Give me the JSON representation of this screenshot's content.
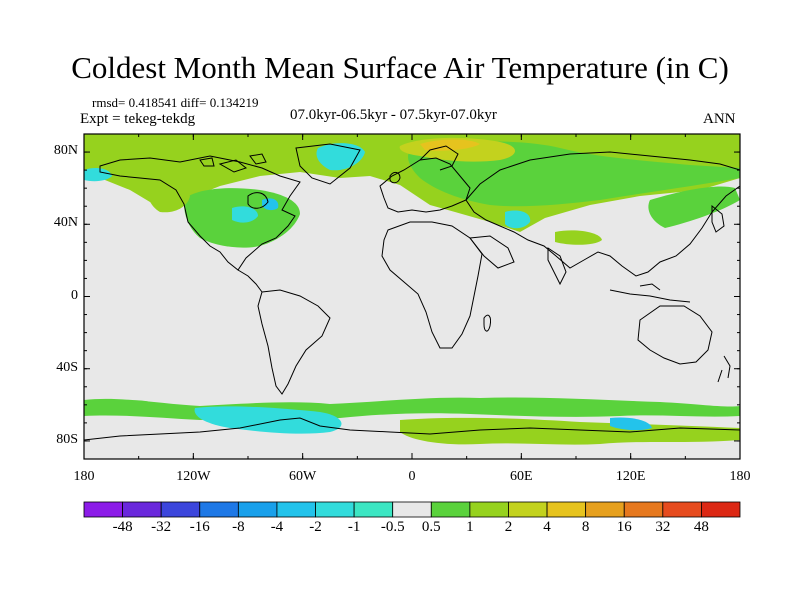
{
  "title": "Coldest Month Mean Surface Air Temperature (in C)",
  "stats": {
    "rmsd_label": "rmsd= 0.418541",
    "diff_label": "diff= 0.134219"
  },
  "expt": "Expt = tekeg-tekdg",
  "period": "07.0kyr-06.5kyr - 07.5kyr-07.0kyr",
  "season": "ANN",
  "map": {
    "lat_labels": [
      "80N",
      "40N",
      "0",
      "40S",
      "80S"
    ],
    "lat_values": [
      80,
      40,
      0,
      -40,
      -80
    ],
    "lon_labels": [
      "180",
      "120W",
      "60W",
      "0",
      "60E",
      "120E",
      "180"
    ],
    "lon_values": [
      -180,
      -120,
      -60,
      0,
      60,
      120,
      180
    ],
    "lat_range": [
      -90,
      90
    ],
    "lon_range": [
      -180,
      180
    ],
    "background_color": "#e8e8e8",
    "coast_color": "#000000"
  },
  "colorbar": {
    "labels": [
      "-48",
      "-32",
      "-16",
      "-8",
      "-4",
      "-2",
      "-1",
      "-0.5",
      "0.5",
      "1",
      "2",
      "4",
      "8",
      "16",
      "32",
      "48"
    ],
    "colors": [
      "#8c1ce8",
      "#6a28dc",
      "#3c46dc",
      "#1e78e6",
      "#19a0eb",
      "#23c3eb",
      "#32dcdc",
      "#3ce6c3",
      "#e8e8e8",
      "#5ad23c",
      "#96d21e",
      "#c3d21e",
      "#e6c31e",
      "#e6a01e",
      "#e6781e",
      "#e64b1e",
      "#dc2814"
    ]
  }
}
